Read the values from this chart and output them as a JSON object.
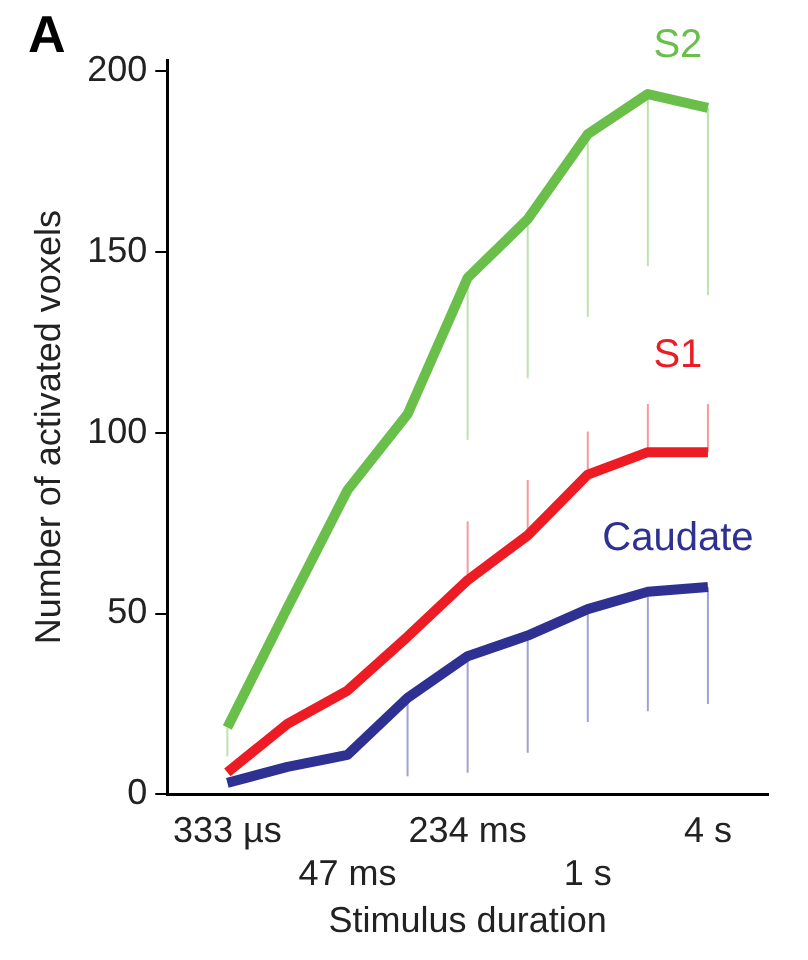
{
  "chart_data": {
    "type": "line",
    "xlabel": "Stimulus duration",
    "ylabel": "Number of activated voxels",
    "annotations": [
      "A"
    ],
    "categories": [
      "333 µs",
      null,
      "47 ms",
      null,
      "234 ms",
      null,
      "1 s",
      null,
      "4 s"
    ],
    "ylim": [
      0,
      203
    ],
    "yticks": [
      0,
      50,
      100,
      150,
      200
    ],
    "grid": false,
    "legend": false,
    "marker": "none",
    "line_style": "solid",
    "series": [
      {
        "name": "S2",
        "color": "#6abf4b",
        "values": [
          18.5,
          51.6,
          84.1,
          105.1,
          142.8,
          159,
          182.5,
          193.6,
          189.8
        ],
        "errors": [
          [
            10.5,
            18.5
          ],
          null,
          null,
          null,
          [
            98,
            142.8
          ],
          [
            115,
            159
          ],
          [
            132,
            182.5
          ],
          [
            146,
            193.6
          ],
          [
            138,
            189.8
          ]
        ]
      },
      {
        "name": "S1",
        "color": "#ed1c24",
        "values": [
          6.1,
          19.5,
          28.7,
          43.6,
          59.2,
          71.6,
          88.4,
          94.6,
          94.6
        ],
        "errors": [
          null,
          null,
          null,
          null,
          [
            59.2,
            75.5
          ],
          [
            71.6,
            86.9
          ],
          [
            88.4,
            100.3
          ],
          [
            94.6,
            107.9
          ],
          [
            94.6,
            107.9
          ]
        ]
      },
      {
        "name": "Caudate",
        "color": "#2e3192",
        "values": [
          3.2,
          7.6,
          10.9,
          26.7,
          38.2,
          43.9,
          51.2,
          56,
          57.3
        ],
        "errors": [
          null,
          null,
          null,
          [
            5,
            26.7
          ],
          [
            6,
            38.2
          ],
          [
            11.5,
            43.9
          ],
          [
            20,
            51.2
          ],
          [
            23,
            56
          ],
          [
            25,
            57.3
          ]
        ]
      }
    ]
  }
}
